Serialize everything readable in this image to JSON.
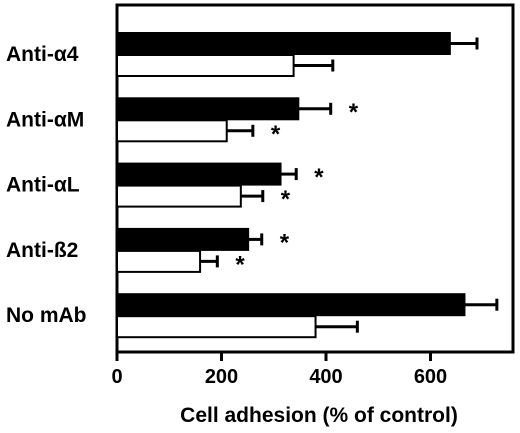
{
  "chart_data": {
    "type": "bar",
    "orientation": "horizontal",
    "categories": [
      "Anti-α4",
      "Anti-αM",
      "Anti-αL",
      "Anti-ß2",
      "No mAb"
    ],
    "series": [
      {
        "fill": "#000000",
        "values": [
          637,
          347,
          313,
          251,
          665
        ],
        "errors": [
          52,
          62,
          30,
          26,
          62
        ],
        "significance": [
          "",
          "*",
          "*",
          "*",
          ""
        ]
      },
      {
        "fill": "#ffffff",
        "values": [
          338,
          210,
          237,
          159,
          380
        ],
        "errors": [
          75,
          50,
          42,
          33,
          80
        ],
        "significance": [
          "",
          "*",
          "*",
          "*",
          ""
        ]
      }
    ],
    "xlabel": "Cell adhesion (% of control)",
    "ylabel": "",
    "title": "",
    "xlim": [
      0,
      750
    ],
    "xticks": [
      0,
      200,
      400,
      600
    ],
    "grid": false,
    "legend": "none"
  }
}
